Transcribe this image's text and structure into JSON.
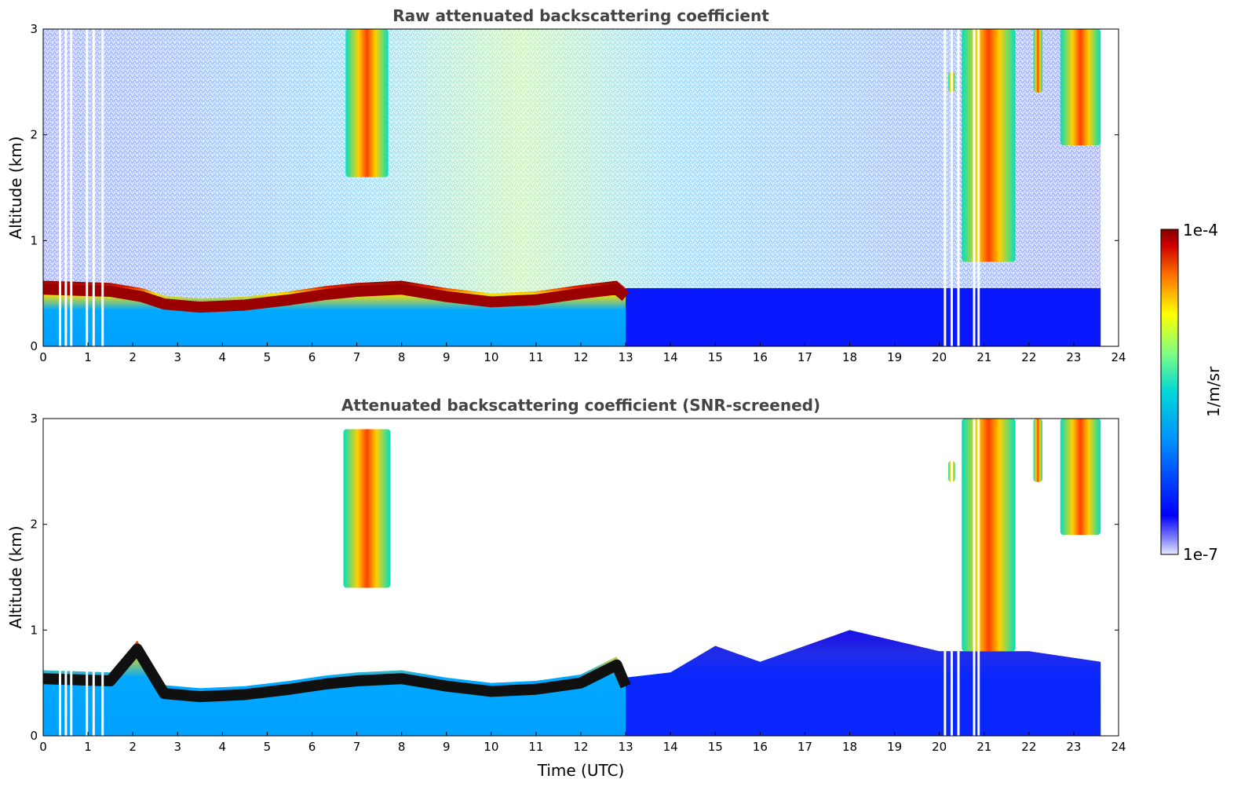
{
  "chart_data": [
    {
      "type": "heatmap",
      "title": "Raw attenuated backscattering coefficient",
      "xlabel": "",
      "ylabel": "Altitude (km)",
      "xlim": [
        0,
        24
      ],
      "ylim": [
        0,
        3
      ],
      "xticks": [
        "0",
        "1",
        "2",
        "3",
        "4",
        "5",
        "6",
        "7",
        "8",
        "9",
        "10",
        "11",
        "12",
        "13",
        "14",
        "15",
        "16",
        "17",
        "18",
        "19",
        "20",
        "21",
        "22",
        "23",
        "24"
      ],
      "yticks": [
        "0",
        "1",
        "2",
        "3"
      ],
      "data_end_hour": 23.6,
      "boundary_layer_top_km": [
        [
          0.0,
          0.62
        ],
        [
          1.5,
          0.6
        ],
        [
          2.2,
          0.55
        ],
        [
          2.7,
          0.48
        ],
        [
          3.5,
          0.45
        ],
        [
          4.5,
          0.47
        ],
        [
          5.5,
          0.52
        ],
        [
          6.3,
          0.57
        ],
        [
          7.0,
          0.6
        ],
        [
          8.0,
          0.62
        ],
        [
          9.0,
          0.55
        ],
        [
          10.0,
          0.5
        ],
        [
          11.0,
          0.52
        ],
        [
          12.0,
          0.58
        ],
        [
          12.8,
          0.62
        ],
        [
          13.0,
          0.55
        ]
      ],
      "cloud_features": [
        {
          "t_start": 6.75,
          "t_end": 7.7,
          "alt_bottom_km": 1.6,
          "alt_top_km": 3.0
        },
        {
          "t_start": 20.2,
          "t_end": 20.35,
          "alt_bottom_km": 2.4,
          "alt_top_km": 2.6
        },
        {
          "t_start": 20.5,
          "t_end": 21.7,
          "alt_bottom_km": 0.8,
          "alt_top_km": 3.0
        },
        {
          "t_start": 22.1,
          "t_end": 22.3,
          "alt_bottom_km": 2.4,
          "alt_top_km": 3.0
        },
        {
          "t_start": 22.7,
          "t_end": 23.6,
          "alt_bottom_km": 1.9,
          "alt_top_km": 3.0
        }
      ],
      "data_gaps_hour": [
        0.35,
        0.48,
        0.6,
        0.95,
        1.1,
        1.3,
        20.1,
        20.25,
        20.4,
        20.75,
        20.85
      ]
    },
    {
      "type": "heatmap",
      "title": "Attenuated backscattering coefficient (SNR-screened)",
      "xlabel": "Time (UTC)",
      "ylabel": "Altitude (km)",
      "xlim": [
        0,
        24
      ],
      "ylim": [
        0,
        3
      ],
      "xticks": [
        "0",
        "1",
        "2",
        "3",
        "4",
        "5",
        "6",
        "7",
        "8",
        "9",
        "10",
        "11",
        "12",
        "13",
        "14",
        "15",
        "16",
        "17",
        "18",
        "19",
        "20",
        "21",
        "22",
        "23",
        "24"
      ],
      "yticks": [
        "0",
        "1",
        "2",
        "3"
      ],
      "data_end_hour": 23.6,
      "boundary_layer_top_km": [
        [
          0.0,
          0.62
        ],
        [
          1.5,
          0.6
        ],
        [
          2.1,
          0.9
        ],
        [
          2.7,
          0.48
        ],
        [
          3.5,
          0.45
        ],
        [
          4.5,
          0.47
        ],
        [
          5.5,
          0.52
        ],
        [
          6.3,
          0.57
        ],
        [
          7.0,
          0.6
        ],
        [
          8.0,
          0.62
        ],
        [
          9.0,
          0.55
        ],
        [
          10.0,
          0.5
        ],
        [
          11.0,
          0.52
        ],
        [
          12.0,
          0.58
        ],
        [
          12.8,
          0.75
        ],
        [
          13.0,
          0.55
        ],
        [
          14.0,
          0.6
        ],
        [
          15.0,
          0.85
        ],
        [
          16.0,
          0.7
        ],
        [
          18.0,
          1.0
        ],
        [
          20.0,
          0.8
        ],
        [
          22.0,
          0.8
        ],
        [
          23.6,
          0.7
        ]
      ],
      "cloud_features": [
        {
          "t_start": 6.7,
          "t_end": 7.75,
          "alt_bottom_km": 1.4,
          "alt_top_km": 2.9
        },
        {
          "t_start": 20.2,
          "t_end": 20.35,
          "alt_bottom_km": 2.4,
          "alt_top_km": 2.6
        },
        {
          "t_start": 20.5,
          "t_end": 21.7,
          "alt_bottom_km": 0.8,
          "alt_top_km": 3.0
        },
        {
          "t_start": 22.1,
          "t_end": 22.3,
          "alt_bottom_km": 2.4,
          "alt_top_km": 3.0
        },
        {
          "t_start": 22.7,
          "t_end": 23.6,
          "alt_bottom_km": 1.9,
          "alt_top_km": 3.0
        }
      ],
      "data_gaps_hour": [
        0.35,
        0.48,
        0.6,
        0.95,
        1.1,
        1.3,
        20.1,
        20.25,
        20.4,
        20.75,
        20.85
      ]
    }
  ],
  "colorbar": {
    "label": "1/m/sr",
    "max_label": "1e-4",
    "min_label": "1e-7",
    "range": [
      1e-07,
      0.0001
    ],
    "scale": "log",
    "colormap": [
      "#e8e8ff",
      "#0000ff",
      "#00a0ff",
      "#00e0d0",
      "#80ff80",
      "#ffff00",
      "#ff8000",
      "#e00000",
      "#800000"
    ]
  }
}
